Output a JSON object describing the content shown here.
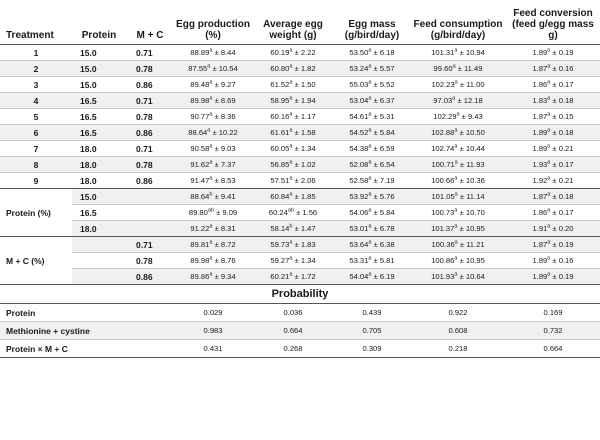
{
  "headers": [
    "Treatment",
    "Protein",
    "M + C",
    "Egg production (%)",
    "Average egg weight (g)",
    "Egg mass (g/bird/day)",
    "Feed consumption (g/bird/day)",
    "Feed conversion (feed g/egg mass g)"
  ],
  "treatments": [
    {
      "id": "1",
      "protein": "15.0",
      "mc": "0.71",
      "egg_production": "88.89|a|± 8.44",
      "egg_weight": "60.19|a|± 2.22",
      "egg_mass": "53.50|a|± 6.18",
      "feed_consumption": "101.31|a|± 10.94",
      "feed_conversion": "1.89|a|± 0.19"
    },
    {
      "id": "2",
      "protein": "15.0",
      "mc": "0.78",
      "egg_production": "87.55|a|± 10.54",
      "egg_weight": "60.80|a|± 1.82",
      "egg_mass": "53.24|a|± 5.57",
      "feed_consumption": "99.60|a|± 11.49",
      "feed_conversion": "1.87|a|± 0.16"
    },
    {
      "id": "3",
      "protein": "15.0",
      "mc": "0.86",
      "egg_production": "89.48|a|± 9.27",
      "egg_weight": "61.52|a|± 1.50",
      "egg_mass": "55.03|a|± 5.52",
      "feed_consumption": "102.23|a|± 11.00",
      "feed_conversion": "1.86|a|± 0.17"
    },
    {
      "id": "4",
      "protein": "16.5",
      "mc": "0.71",
      "egg_production": "89.98|a|± 8.69",
      "egg_weight": "58.95|a|± 1.94",
      "egg_mass": "53.04|a|± 6.37",
      "feed_consumption": "97.03|a|± 12.18",
      "feed_conversion": "1.83|a|± 0.18"
    },
    {
      "id": "5",
      "protein": "16.5",
      "mc": "0.78",
      "egg_production": "90.77|a|± 8.36",
      "egg_weight": "60.16|a|± 1.17",
      "egg_mass": "54.61|a|± 5.31",
      "feed_consumption": "102.29|a|± 9.43",
      "feed_conversion": "1.87|a|± 0.15"
    },
    {
      "id": "6",
      "protein": "16.5",
      "mc": "0.86",
      "egg_production": "88.64|a|± 10.22",
      "egg_weight": "61.61|a|± 1.58",
      "egg_mass": "54.52|a|± 5.84",
      "feed_consumption": "102.88|a|± 10.50",
      "feed_conversion": "1.89|a|± 0.18"
    },
    {
      "id": "7",
      "protein": "18.0",
      "mc": "0.71",
      "egg_production": "90.58|a|± 9.03",
      "egg_weight": "60.05|a|± 1.34",
      "egg_mass": "54.38|a|± 6.59",
      "feed_consumption": "102.74|a|± 10.44",
      "feed_conversion": "1.89|a|± 0.21"
    },
    {
      "id": "8",
      "protein": "18.0",
      "mc": "0.78",
      "egg_production": "91.62|a|± 7.37",
      "egg_weight": "56.85|a|± 1.02",
      "egg_mass": "52.08|a|± 6.54",
      "feed_consumption": "100.71|a|± 11.93",
      "feed_conversion": "1.93|a|± 0.17"
    },
    {
      "id": "9",
      "protein": "18.0",
      "mc": "0.86",
      "egg_production": "91.47|a|± 8.53",
      "egg_weight": "57.51|a|± 2.06",
      "egg_mass": "52.58|a|± 7.19",
      "feed_consumption": "100.66|a|± 10.36",
      "feed_conversion": "1.92|a|± 0.21"
    }
  ],
  "protein_group": {
    "label": "Protein (%)",
    "rows": [
      {
        "level": "15.0",
        "egg_production": "88.64|b|± 9.41",
        "egg_weight": "60.84|a|± 1.85",
        "egg_mass": "53.92|a|± 5.76",
        "feed_consumption": "101.05|a|± 11.14",
        "feed_conversion": "1.87|a|± 0.18"
      },
      {
        "level": "16.5",
        "egg_production": "89.80|ab|± 9.09",
        "egg_weight": "60.24|ab|± 1.56",
        "egg_mass": "54.06|a|± 5.84",
        "feed_consumption": "100.73|a|± 10.70",
        "feed_conversion": "1.86|a|± 0.17"
      },
      {
        "level": "18.0",
        "egg_production": "91.22|a|± 8.31",
        "egg_weight": "58.14|b|± 1.47",
        "egg_mass": "53.01|a|± 6.78",
        "feed_consumption": "101.37|a|± 10.95",
        "feed_conversion": "1.91|a|± 0.20"
      }
    ]
  },
  "mc_group": {
    "label": "M + C (%)",
    "rows": [
      {
        "level": "0.71",
        "egg_production": "89.81|a|± 8.72",
        "egg_weight": "59.73|a|± 1.83",
        "egg_mass": "53.64|a|± 6.38",
        "feed_consumption": "100.36|a|± 11.21",
        "feed_conversion": "1.87|a|± 0.19"
      },
      {
        "level": "0.78",
        "egg_production": "89.98|a|± 8.76",
        "egg_weight": "59.27|a|± 1.34",
        "egg_mass": "53.31|a|± 5.81",
        "feed_consumption": "100.86|a|± 10.95",
        "feed_conversion": "1.89|a|± 0.16"
      },
      {
        "level": "0.86",
        "egg_production": "89.86|a|± 9.34",
        "egg_weight": "60.21|a|± 1.72",
        "egg_mass": "54.04|a|± 6.19",
        "feed_consumption": "101.93|a|± 10.64",
        "feed_conversion": "1.89|a|± 0.19"
      }
    ]
  },
  "probability": {
    "title": "Probability",
    "rows": [
      {
        "label": "Protein",
        "values": [
          "0.029",
          "0.036",
          "0.439",
          "0.922",
          "0.169"
        ]
      },
      {
        "label": "Methionine + cystine",
        "values": [
          "0.983",
          "0.664",
          "0.705",
          "0.608",
          "0.732"
        ]
      },
      {
        "label": "Protein × M + C",
        "values": [
          "0.431",
          "0.268",
          "0.309",
          "0.218",
          "0.664"
        ]
      }
    ]
  }
}
